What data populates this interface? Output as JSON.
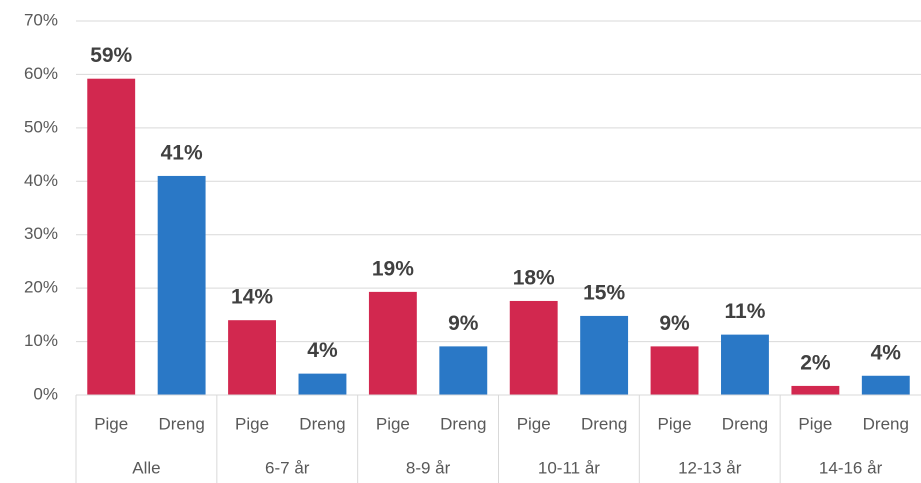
{
  "chart_data": {
    "type": "bar",
    "groups": [
      {
        "name": "Alle",
        "categories": [
          "Pige",
          "Dreng"
        ],
        "values": [
          59.2,
          41
        ],
        "value_labels": [
          "59%",
          "41%"
        ]
      },
      {
        "name": "6-7 år",
        "categories": [
          "Pige",
          "Dreng"
        ],
        "values": [
          14,
          4
        ],
        "value_labels": [
          "14%",
          "4%"
        ]
      },
      {
        "name": "8-9 år",
        "categories": [
          "Pige",
          "Dreng"
        ],
        "values": [
          19.3,
          9.1
        ],
        "value_labels": [
          "19%",
          "9%"
        ]
      },
      {
        "name": "10-11 år",
        "categories": [
          "Pige",
          "Dreng"
        ],
        "values": [
          17.6,
          14.8
        ],
        "value_labels": [
          "18%",
          "15%"
        ]
      },
      {
        "name": "12-13 år",
        "categories": [
          "Pige",
          "Dreng"
        ],
        "values": [
          9.1,
          11.3
        ],
        "value_labels": [
          "9%",
          "11%"
        ]
      },
      {
        "name": "14-16 år",
        "categories": [
          "Pige",
          "Dreng"
        ],
        "values": [
          1.7,
          3.6
        ],
        "value_labels": [
          "2%",
          "4%"
        ]
      }
    ],
    "colors": [
      "#d2284f",
      "#2a78c6"
    ],
    "ylim": [
      0,
      70
    ],
    "yticks": [
      {
        "value": 0,
        "label": "0%"
      },
      {
        "value": 10,
        "label": "10%"
      },
      {
        "value": 20,
        "label": "20%"
      },
      {
        "value": 30,
        "label": "30%"
      },
      {
        "value": 40,
        "label": "40%"
      },
      {
        "value": 50,
        "label": "50%"
      },
      {
        "value": 60,
        "label": "60%"
      },
      {
        "value": 70,
        "label": "70%"
      }
    ],
    "grid": true
  }
}
